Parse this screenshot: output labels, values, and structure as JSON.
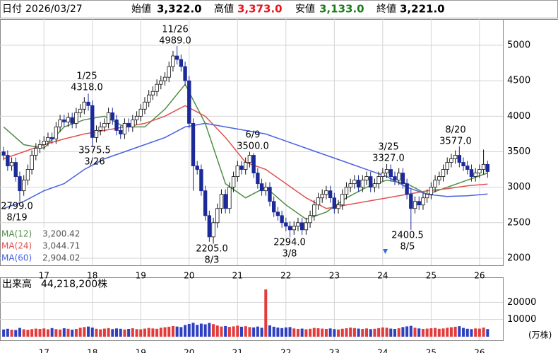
{
  "header": {
    "date_label": "日付",
    "date": "2026/03/27",
    "items": [
      {
        "label": "始値",
        "value": "3,322.0"
      },
      {
        "label": "高値",
        "value": "3,373.0",
        "color": "#e8131b"
      },
      {
        "label": "安値",
        "value": "3,133.0",
        "color": "#1a7a1a"
      },
      {
        "label": "終値",
        "value": "3,221.0"
      }
    ]
  },
  "chart_data": [
    {
      "type": "candlestick",
      "up_color": "#ffffff",
      "down_color": "#1c2a99",
      "grid": true,
      "xlim": [
        -0.9,
        123.8
      ],
      "xticks": [
        {
          "value": 10,
          "label": "17"
        },
        {
          "value": 22,
          "label": "18"
        },
        {
          "value": 34,
          "label": "19"
        },
        {
          "value": 46,
          "label": "20"
        },
        {
          "value": 58,
          "label": "21"
        },
        {
          "value": 70,
          "label": "22"
        },
        {
          "value": 82,
          "label": "23"
        },
        {
          "value": 94,
          "label": "24"
        },
        {
          "value": 106,
          "label": "25"
        },
        {
          "value": 118,
          "label": "26"
        }
      ],
      "ylim": [
        1900,
        5369
      ],
      "yticks": [
        2000,
        2500,
        3000,
        3500,
        4000,
        4500,
        5000
      ],
      "open": [
        3500,
        3450,
        3300,
        3350,
        3150,
        2950,
        3100,
        3250,
        3450,
        3550,
        3600,
        3650,
        3700,
        3680,
        3850,
        3950,
        3920,
        3980,
        3900,
        4050,
        4100,
        4200,
        4150,
        3700,
        3800,
        3850,
        3900,
        4050,
        3950,
        3800,
        3750,
        3900,
        3850,
        3950,
        4000,
        4100,
        4200,
        4300,
        4350,
        4450,
        4500,
        4550,
        4700,
        4850,
        4800,
        4700,
        4500,
        3900,
        3300,
        3250,
        2950,
        2600,
        2300,
        2500,
        2700,
        2900,
        2700,
        3000,
        3150,
        3300,
        3250,
        3350,
        3450,
        3200,
        3050,
        2950,
        3000,
        2800,
        2650,
        2600,
        2500,
        2450,
        2400,
        2450,
        2500,
        2400,
        2500,
        2600,
        2750,
        2850,
        2900,
        2950,
        2850,
        2700,
        2750,
        2900,
        3000,
        3050,
        3100,
        3000,
        3100,
        3150,
        3000,
        3050,
        3150,
        3200,
        3250,
        3150,
        3100,
        3200,
        3050,
        2900,
        2700,
        2800,
        2750,
        2850,
        2900,
        3000,
        3100,
        3150,
        3250,
        3350,
        3400,
        3450,
        3350,
        3300,
        3250,
        3150,
        3200,
        3250,
        3322
      ],
      "high": [
        3570,
        3520,
        3420,
        3420,
        3220,
        3170,
        3320,
        3520,
        3620,
        3670,
        3720,
        3770,
        3770,
        3920,
        4020,
        4020,
        4050,
        4050,
        4120,
        4170,
        4270,
        4318,
        4220,
        3870,
        3920,
        3970,
        4120,
        4120,
        4020,
        3870,
        3970,
        3970,
        4020,
        4070,
        4170,
        4270,
        4370,
        4420,
        4520,
        4570,
        4620,
        4770,
        4920,
        4989,
        4870,
        4770,
        4570,
        3970,
        3370,
        3320,
        3020,
        2670,
        2570,
        2770,
        2970,
        2970,
        3070,
        3220,
        3370,
        3370,
        3420,
        3500,
        3480,
        3270,
        3120,
        3070,
        3070,
        2870,
        2720,
        2670,
        2570,
        2520,
        2520,
        2570,
        2570,
        2570,
        2670,
        2820,
        2920,
        2970,
        3020,
        3020,
        2920,
        2820,
        2970,
        3070,
        3120,
        3170,
        3170,
        3170,
        3220,
        3220,
        3120,
        3220,
        3270,
        3327,
        3320,
        3220,
        3270,
        3270,
        3120,
        2970,
        2870,
        2870,
        2920,
        2970,
        3070,
        3170,
        3220,
        3320,
        3420,
        3470,
        3520,
        3577,
        3420,
        3370,
        3320,
        3270,
        3320,
        3530,
        3373
      ],
      "low": [
        3380,
        3230,
        3230,
        3080,
        2799,
        2880,
        3030,
        3180,
        3380,
        3480,
        3530,
        3580,
        3610,
        3610,
        3780,
        3850,
        3850,
        3830,
        3830,
        3980,
        4030,
        4080,
        3575.5,
        3630,
        3730,
        3780,
        3830,
        3880,
        3730,
        3680,
        3680,
        3780,
        3780,
        3880,
        3930,
        4030,
        4130,
        4230,
        4280,
        4380,
        4430,
        4480,
        4630,
        4730,
        4630,
        4430,
        3830,
        2950,
        3180,
        2880,
        2530,
        2230,
        2205,
        2430,
        2630,
        2630,
        2630,
        2930,
        3080,
        3180,
        3180,
        3280,
        3130,
        2980,
        2880,
        2880,
        2730,
        2580,
        2530,
        2430,
        2380,
        2294,
        2330,
        2380,
        2330,
        2330,
        2430,
        2530,
        2680,
        2780,
        2830,
        2780,
        2630,
        2630,
        2680,
        2830,
        2930,
        2980,
        2930,
        2930,
        3030,
        2930,
        2930,
        2980,
        3080,
        3130,
        3080,
        3030,
        3030,
        2980,
        2830,
        2400.5,
        2630,
        2680,
        2680,
        2780,
        2830,
        2930,
        3030,
        3080,
        3180,
        3280,
        3330,
        3280,
        3230,
        3180,
        3080,
        3080,
        3130,
        3180,
        3133
      ],
      "close": [
        3450,
        3300,
        3350,
        3150,
        2950,
        3100,
        3250,
        3450,
        3550,
        3600,
        3650,
        3700,
        3680,
        3850,
        3950,
        3920,
        3980,
        3900,
        4050,
        4100,
        4200,
        4150,
        3700,
        3800,
        3850,
        3900,
        4050,
        3950,
        3800,
        3750,
        3900,
        3850,
        3950,
        4000,
        4100,
        4200,
        4300,
        4350,
        4450,
        4500,
        4550,
        4700,
        4850,
        4800,
        4700,
        4500,
        3900,
        3300,
        3250,
        2950,
        2600,
        2300,
        2500,
        2700,
        2900,
        2700,
        3000,
        3150,
        3300,
        3250,
        3350,
        3450,
        3200,
        3050,
        2950,
        3000,
        2800,
        2650,
        2600,
        2500,
        2450,
        2400,
        2450,
        2500,
        2400,
        2500,
        2600,
        2750,
        2850,
        2900,
        2950,
        2850,
        2700,
        2750,
        2900,
        3000,
        3050,
        3100,
        3000,
        3100,
        3150,
        3000,
        3050,
        3150,
        3200,
        3250,
        3150,
        3100,
        3200,
        3050,
        2900,
        2700,
        2800,
        2750,
        2850,
        2900,
        3000,
        3100,
        3150,
        3250,
        3350,
        3400,
        3450,
        3350,
        3300,
        3250,
        3150,
        3200,
        3250,
        3322,
        3221
      ],
      "series": [
        {
          "name": "MA(12)",
          "legend_value": "3,200.42",
          "color": "#4f8f46",
          "x": [
            0,
            5,
            10,
            15,
            20,
            25,
            30,
            35,
            40,
            45,
            50,
            55,
            60,
            65,
            70,
            75,
            80,
            85,
            90,
            95,
            100,
            105,
            110,
            115,
            120
          ],
          "values": [
            3850,
            3600,
            3550,
            3850,
            3950,
            4000,
            3850,
            3850,
            4100,
            4450,
            3900,
            3050,
            2850,
            3000,
            2750,
            2550,
            2650,
            2850,
            3000,
            3100,
            3050,
            2900,
            3000,
            3100,
            3200.42
          ]
        },
        {
          "name": "MA(24)",
          "legend_value": "3,044.71",
          "color": "#e05252",
          "x": [
            0,
            5,
            10,
            15,
            20,
            25,
            30,
            35,
            40,
            45,
            50,
            55,
            60,
            65,
            70,
            75,
            80,
            85,
            90,
            95,
            100,
            105,
            110,
            115,
            120
          ],
          "values": [
            3400,
            3500,
            3600,
            3680,
            3750,
            3800,
            3850,
            3900,
            4000,
            4150,
            4000,
            3700,
            3350,
            3250,
            3050,
            2850,
            2700,
            2750,
            2800,
            2850,
            2900,
            2950,
            2980,
            3020,
            3044.71
          ]
        },
        {
          "name": "MA(60)",
          "legend_value": "2,904.02",
          "color": "#4a62e0",
          "x": [
            0,
            5,
            10,
            15,
            20,
            25,
            30,
            35,
            40,
            45,
            50,
            55,
            60,
            65,
            70,
            75,
            80,
            85,
            90,
            95,
            100,
            105,
            110,
            115,
            120
          ],
          "values": [
            2700,
            2800,
            2950,
            3050,
            3250,
            3400,
            3500,
            3600,
            3700,
            3850,
            3900,
            3850,
            3800,
            3750,
            3650,
            3550,
            3450,
            3350,
            3250,
            3150,
            3000,
            2900,
            2870,
            2880,
            2904.02
          ]
        }
      ],
      "annotations": [
        {
          "lines": [
            "2799.0",
            "8/19"
          ]
        },
        {
          "lines": [
            "1/25",
            "4318.0"
          ]
        },
        {
          "lines": [
            "3575.5",
            "3/26"
          ]
        },
        {
          "lines": [
            "11/26",
            "4989.0"
          ]
        },
        {
          "lines": [
            "2205.0",
            "8/3"
          ]
        },
        {
          "lines": [
            "6/9",
            "3500.0"
          ]
        },
        {
          "lines": [
            "2294.0",
            "3/8"
          ]
        },
        {
          "lines": [
            "3/25",
            "3327.0"
          ]
        },
        {
          "lines": [
            "2400.5",
            "8/5"
          ]
        },
        {
          "lines": [
            "8/20",
            "3577.0"
          ]
        }
      ]
    },
    {
      "type": "bar",
      "title": "出来高",
      "latest": "44,218,200株",
      "unit_label": "(万株)",
      "up_color": "#e23b3b",
      "down_color": "#2e3fc0",
      "xlim": [
        -0.9,
        123.8
      ],
      "xticks": [
        {
          "value": 10,
          "label": "17"
        },
        {
          "value": 22,
          "label": "18"
        },
        {
          "value": 34,
          "label": "19"
        },
        {
          "value": 46,
          "label": "20"
        },
        {
          "value": 58,
          "label": "21"
        },
        {
          "value": 70,
          "label": "22"
        },
        {
          "value": 82,
          "label": "23"
        },
        {
          "value": 94,
          "label": "24"
        },
        {
          "value": 106,
          "label": "25"
        },
        {
          "value": 118,
          "label": "26"
        }
      ],
      "ylim": [
        -2083,
        34583
      ],
      "yticks": [
        10000,
        20000
      ],
      "values": [
        4200,
        4600,
        4100,
        3900,
        5100,
        4300,
        4000,
        4400,
        4700,
        4500,
        4800,
        4300,
        5000,
        4400,
        4200,
        4900,
        4600,
        4100,
        4500,
        5200,
        5600,
        5900,
        5300,
        4600,
        4300,
        4700,
        5000,
        4400,
        4800,
        4600,
        4200,
        4500,
        4900,
        4400,
        4300,
        4700,
        5100,
        4800,
        4600,
        5200,
        5500,
        5800,
        6200,
        5900,
        5600,
        6800,
        7400,
        8100,
        6900,
        7600,
        7200,
        8000,
        7300,
        6500,
        5900,
        6200,
        5700,
        6000,
        6400,
        5800,
        6100,
        5600,
        5400,
        5900,
        5200,
        27500,
        6600,
        5800,
        5300,
        5000,
        5400,
        5600,
        4800,
        4500,
        4700,
        4300,
        4600,
        5100,
        4900,
        4700,
        4500,
        4800,
        4400,
        4200,
        4600,
        4900,
        5300,
        5000,
        4700,
        4500,
        4800,
        4400,
        4600,
        5000,
        5400,
        5200,
        4700,
        4500,
        4900,
        5600,
        6000,
        6300,
        5200,
        4800,
        4500,
        4700,
        4900,
        5100,
        4600,
        4800,
        5200,
        5500,
        5800,
        6100,
        5100,
        4600,
        4400,
        4800,
        4700,
        5300,
        4421.82
      ]
    }
  ]
}
